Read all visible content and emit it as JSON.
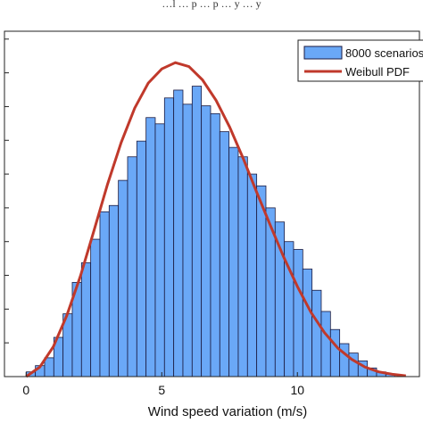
{
  "chart_data": {
    "type": "bar",
    "title": "…l … p … p … y … y",
    "xlabel": "Wind speed variation (m/s)",
    "ylabel": "",
    "xlim": [
      -0.8,
      14.5
    ],
    "ylim": [
      0,
      440
    ],
    "xticks": [
      "0",
      "5",
      "10"
    ],
    "xtick_values": [
      0,
      5,
      10
    ],
    "grid": false,
    "legend_position": "top-right",
    "colors": {
      "bars": "#6aa8f7",
      "bar_edge": "#1a1a40",
      "pdf": "#c0392b"
    },
    "histogram": {
      "name": "8000 scenarios",
      "bin_width": 0.34,
      "bin_starts": [
        0.0,
        0.34,
        0.68,
        1.02,
        1.36,
        1.7,
        2.04,
        2.38,
        2.72,
        3.06,
        3.4,
        3.74,
        4.08,
        4.42,
        4.76,
        5.1,
        5.44,
        5.78,
        6.12,
        6.46,
        6.8,
        7.14,
        7.48,
        7.82,
        8.16,
        8.5,
        8.84,
        9.18,
        9.52,
        9.86,
        10.2,
        10.54,
        10.88,
        11.22,
        11.56,
        11.9,
        12.24,
        12.58,
        12.92,
        13.26
      ],
      "counts": [
        6,
        14,
        24,
        50,
        80,
        120,
        145,
        175,
        210,
        218,
        250,
        280,
        300,
        330,
        322,
        355,
        365,
        347,
        370,
        345,
        335,
        312,
        292,
        280,
        258,
        243,
        215,
        197,
        172,
        162,
        137,
        110,
        83,
        60,
        42,
        30,
        20,
        11,
        6,
        3
      ]
    },
    "pdf_curve": {
      "name": "Weibull PDF",
      "x": [
        0,
        0.5,
        1,
        1.5,
        2,
        2.5,
        3,
        3.5,
        4,
        4.5,
        5,
        5.5,
        6,
        6.5,
        7,
        7.5,
        8,
        8.5,
        9,
        9.5,
        10,
        10.5,
        11,
        11.5,
        12,
        12.5,
        13,
        13.5,
        14
      ],
      "y": [
        0,
        12,
        38,
        78,
        128,
        186,
        245,
        298,
        342,
        374,
        392,
        400,
        395,
        378,
        352,
        318,
        278,
        235,
        193,
        152,
        115,
        82,
        56,
        36,
        22,
        12,
        6,
        3,
        1
      ]
    }
  }
}
